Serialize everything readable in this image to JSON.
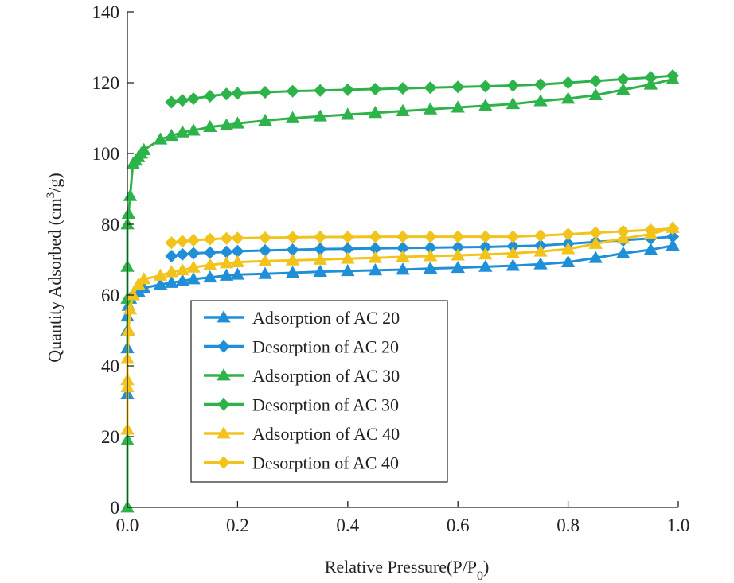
{
  "chart_data": {
    "type": "line",
    "xlabel": "Relative Pressure(P/P",
    "xlabel_sub": "0",
    "xlabel_close": ")",
    "ylabel": "Quantity Adsorbed (cm",
    "ylabel_sup": "3",
    "ylabel_close": "/g)",
    "xlim": [
      0,
      1.0
    ],
    "ylim": [
      0,
      140
    ],
    "xticks": [
      "0.0",
      "0.2",
      "0.4",
      "0.6",
      "0.8",
      "1.0"
    ],
    "yticks": [
      "0",
      "20",
      "40",
      "60",
      "80",
      "100",
      "120",
      "140"
    ],
    "grid": false,
    "legend_position": "lower-left",
    "series": [
      {
        "name": "Adsorption of AC 20",
        "color": "#1f8fd8",
        "marker": "triangle",
        "x": [
          0.0,
          0.0,
          0.0,
          0.0,
          0.002,
          0.005,
          0.01,
          0.02,
          0.03,
          0.06,
          0.08,
          0.1,
          0.12,
          0.15,
          0.18,
          0.2,
          0.25,
          0.3,
          0.35,
          0.4,
          0.45,
          0.5,
          0.55,
          0.6,
          0.65,
          0.7,
          0.75,
          0.8,
          0.85,
          0.9,
          0.95,
          0.99
        ],
        "y": [
          32,
          45,
          50,
          54,
          57,
          59,
          60,
          61,
          62,
          63,
          63.5,
          64,
          64.5,
          65,
          65.5,
          65.8,
          66,
          66.3,
          66.6,
          66.8,
          67,
          67.2,
          67.5,
          67.7,
          68,
          68.3,
          68.7,
          69.3,
          70.5,
          71.8,
          72.8,
          74
        ]
      },
      {
        "name": "Desorption of AC 20",
        "color": "#1f8fd8",
        "marker": "diamond",
        "x": [
          0.08,
          0.1,
          0.12,
          0.15,
          0.18,
          0.2,
          0.25,
          0.3,
          0.35,
          0.4,
          0.45,
          0.5,
          0.55,
          0.6,
          0.65,
          0.7,
          0.75,
          0.8,
          0.85,
          0.9,
          0.95,
          0.99
        ],
        "y": [
          71,
          71.5,
          71.8,
          72,
          72.2,
          72.4,
          72.6,
          72.8,
          73,
          73.1,
          73.2,
          73.3,
          73.4,
          73.5,
          73.6,
          73.8,
          74,
          74.5,
          75,
          75.5,
          76,
          76.5
        ]
      },
      {
        "name": "Adsorption of AC 30",
        "color": "#2db34a",
        "marker": "triangle",
        "x": [
          0.0,
          0.0,
          0.0,
          0.0,
          0.0,
          0.002,
          0.005,
          0.01,
          0.015,
          0.02,
          0.025,
          0.03,
          0.06,
          0.08,
          0.1,
          0.12,
          0.15,
          0.18,
          0.2,
          0.25,
          0.3,
          0.35,
          0.4,
          0.45,
          0.5,
          0.55,
          0.6,
          0.65,
          0.7,
          0.75,
          0.8,
          0.85,
          0.9,
          0.95,
          0.99
        ],
        "y": [
          0,
          19,
          59,
          68,
          80,
          83,
          88,
          97,
          98,
          99,
          100,
          101,
          104,
          105,
          106,
          106.5,
          107.5,
          108,
          108.5,
          109.3,
          110,
          110.5,
          111,
          111.5,
          112,
          112.5,
          113,
          113.5,
          114,
          114.8,
          115.5,
          116.5,
          118,
          119.5,
          121
        ]
      },
      {
        "name": "Desorption of AC 30",
        "color": "#2db34a",
        "marker": "diamond",
        "x": [
          0.08,
          0.1,
          0.12,
          0.15,
          0.18,
          0.2,
          0.25,
          0.3,
          0.35,
          0.4,
          0.45,
          0.5,
          0.55,
          0.6,
          0.65,
          0.7,
          0.75,
          0.8,
          0.85,
          0.9,
          0.95,
          0.99
        ],
        "y": [
          114.5,
          115,
          115.5,
          116.2,
          116.8,
          117,
          117.3,
          117.6,
          117.8,
          118,
          118.2,
          118.4,
          118.6,
          118.8,
          119,
          119.2,
          119.5,
          120,
          120.5,
          121,
          121.5,
          122
        ]
      },
      {
        "name": "Adsorption of AC 40",
        "color": "#f2c31a",
        "marker": "triangle",
        "x": [
          0.0,
          0.0,
          0.0,
          0.0,
          0.002,
          0.005,
          0.01,
          0.02,
          0.03,
          0.06,
          0.08,
          0.1,
          0.12,
          0.15,
          0.18,
          0.2,
          0.25,
          0.3,
          0.35,
          0.4,
          0.45,
          0.5,
          0.55,
          0.6,
          0.65,
          0.7,
          0.75,
          0.8,
          0.85,
          0.9,
          0.95,
          0.99
        ],
        "y": [
          22,
          34,
          36,
          42,
          50,
          56,
          60,
          63,
          64.5,
          65.5,
          66.5,
          67,
          67.8,
          68.5,
          69,
          69.3,
          69.6,
          69.8,
          70,
          70.3,
          70.5,
          70.8,
          71,
          71.2,
          71.5,
          71.8,
          72.3,
          73,
          74.5,
          76,
          77.2,
          79
        ]
      },
      {
        "name": "Desorption of AC 40",
        "color": "#f2c31a",
        "marker": "diamond",
        "x": [
          0.08,
          0.1,
          0.12,
          0.15,
          0.18,
          0.2,
          0.25,
          0.3,
          0.35,
          0.4,
          0.45,
          0.5,
          0.55,
          0.6,
          0.65,
          0.7,
          0.75,
          0.8,
          0.85,
          0.9,
          0.95,
          0.99
        ],
        "y": [
          74.8,
          75.2,
          75.5,
          75.8,
          76,
          76.1,
          76.2,
          76.3,
          76.4,
          76.4,
          76.5,
          76.5,
          76.5,
          76.5,
          76.5,
          76.5,
          76.8,
          77.2,
          77.6,
          78,
          78.4,
          78.8
        ]
      }
    ]
  }
}
